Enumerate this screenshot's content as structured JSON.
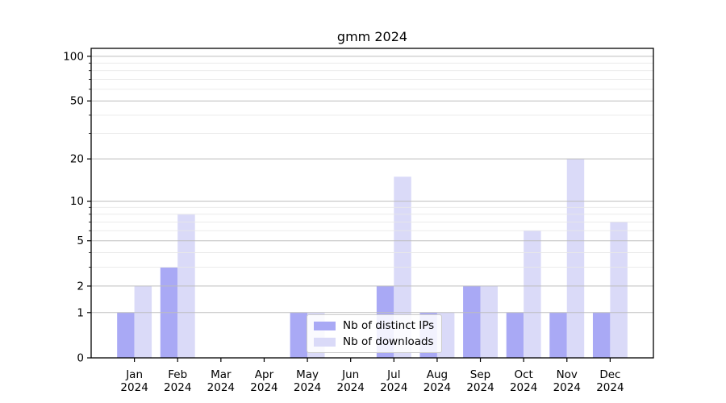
{
  "title": "gmm 2024",
  "chart_data": {
    "type": "bar",
    "title": "gmm 2024",
    "categories": [
      "Jan 2024",
      "Feb 2024",
      "Mar 2024",
      "Apr 2024",
      "May 2024",
      "Jun 2024",
      "Jul 2024",
      "Aug 2024",
      "Sep 2024",
      "Oct 2024",
      "Nov 2024",
      "Dec 2024"
    ],
    "x_labels": [
      [
        "Jan",
        "2024"
      ],
      [
        "Feb",
        "2024"
      ],
      [
        "Mar",
        "2024"
      ],
      [
        "Apr",
        "2024"
      ],
      [
        "May",
        "2024"
      ],
      [
        "Jun",
        "2024"
      ],
      [
        "Jul",
        "2024"
      ],
      [
        "Aug",
        "2024"
      ],
      [
        "Sep",
        "2024"
      ],
      [
        "Oct",
        "2024"
      ],
      [
        "Nov",
        "2024"
      ],
      [
        "Dec",
        "2024"
      ]
    ],
    "series": [
      {
        "name": "Nb of distinct IPs",
        "color": "#a9a9f5",
        "values": [
          1,
          3,
          0,
          0,
          1,
          0,
          2,
          1,
          2,
          1,
          1,
          1
        ]
      },
      {
        "name": "Nb of downloads",
        "color": "#dadaf8",
        "values": [
          2,
          8,
          0,
          0,
          1,
          0,
          15,
          1,
          2,
          6,
          20,
          7
        ]
      }
    ],
    "xlabel": "",
    "ylabel": "",
    "yscale": "log1p",
    "ylim": [
      0,
      113
    ],
    "yticks": [
      0,
      1,
      2,
      5,
      10,
      20,
      50,
      100
    ],
    "minor_yticks": [
      3,
      4,
      6,
      7,
      8,
      9,
      30,
      40,
      60,
      70,
      80,
      90
    ],
    "grid": "horizontal, major and minor, drawn over bars",
    "legend_position": "lower center"
  },
  "colors": {
    "background": "#ffffff",
    "bar_distinct_ips": "#a9a9f5",
    "bar_downloads": "#dadaf8",
    "grid_major": "#bdbdbd",
    "grid_minor": "#e8e8e8",
    "axis_spine": "#000000",
    "text": "#000000",
    "legend_border": "#cccccc"
  }
}
